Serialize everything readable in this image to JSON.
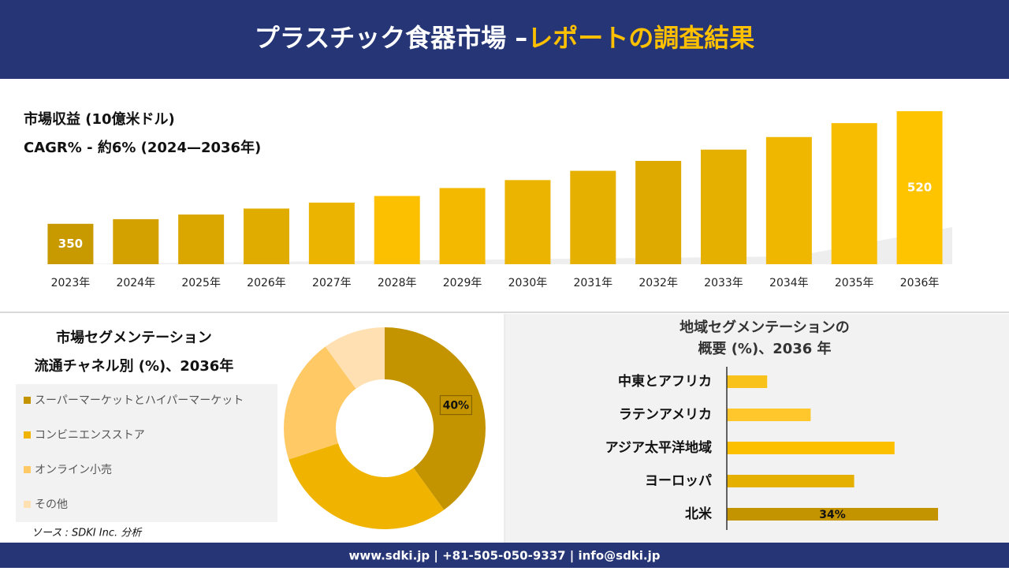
{
  "header": {
    "title_main": "プラスチック食器市場 –",
    "title_highlight": "レポートの調査結果"
  },
  "footer": "www.sdki.jp | +81-505-050-9337 | info@sdki.jp",
  "chart_data": [
    {
      "type": "bar",
      "title": "市場収益 (10億米ドル)",
      "subtitle": "CAGR% - 約6% (2024—2036年)",
      "categories": [
        "2023年",
        "2024年",
        "2025年",
        "2026年",
        "2027年",
        "2028年",
        "2029年",
        "2030年",
        "2031年",
        "2032年",
        "2033年",
        "2034年",
        "2035年",
        "2036年"
      ],
      "values": [
        350,
        357,
        364,
        373,
        382,
        392,
        404,
        416,
        430,
        445,
        462,
        481,
        502,
        520
      ],
      "value_labels": [
        "350",
        null,
        null,
        null,
        null,
        null,
        null,
        null,
        null,
        null,
        null,
        null,
        null,
        "520"
      ],
      "colors": [
        "#c99a00",
        "#d4a200",
        "#d9a700",
        "#e0ac00",
        "#ebb400",
        "#fcc000",
        "#f2b900",
        "#ebb400",
        "#e6b000",
        "#deaa00",
        "#e6b000",
        "#efb700",
        "#f7bd00",
        "#ffc400"
      ],
      "ylim": [
        289,
        520
      ]
    },
    {
      "type": "pie",
      "title": "市場セグメンテーション",
      "subtitle": "流通チャネル別 (%)、2036年",
      "categories": [
        "スーパーマーケットとハイパーマーケット",
        "コンビニエンスストア",
        "オンライン小売",
        "その他"
      ],
      "values": [
        40,
        30,
        20,
        10
      ],
      "value_labels": [
        "40%",
        null,
        null,
        null
      ],
      "colors": [
        "#c49400",
        "#f0b400",
        "#ffc966",
        "#ffe0b2"
      ],
      "source": "ソース : SDKI Inc. 分析"
    },
    {
      "type": "barh",
      "title": [
        "地域セグメンテーションの",
        "概要 (%)、2036 年"
      ],
      "categories": [
        "中東とアフリカ",
        "ラテンアメリカ",
        "アジア太平洋地域",
        "ヨーロッパ",
        "北米"
      ],
      "values": [
        6.5,
        13.5,
        27,
        20.5,
        34
      ],
      "value_labels": [
        null,
        null,
        null,
        null,
        "34%"
      ],
      "colors": [
        "#f9c21a",
        "#ffc72c",
        "#fcc000",
        "#e6b000",
        "#c49300"
      ],
      "xlim": [
        0,
        34
      ]
    }
  ]
}
